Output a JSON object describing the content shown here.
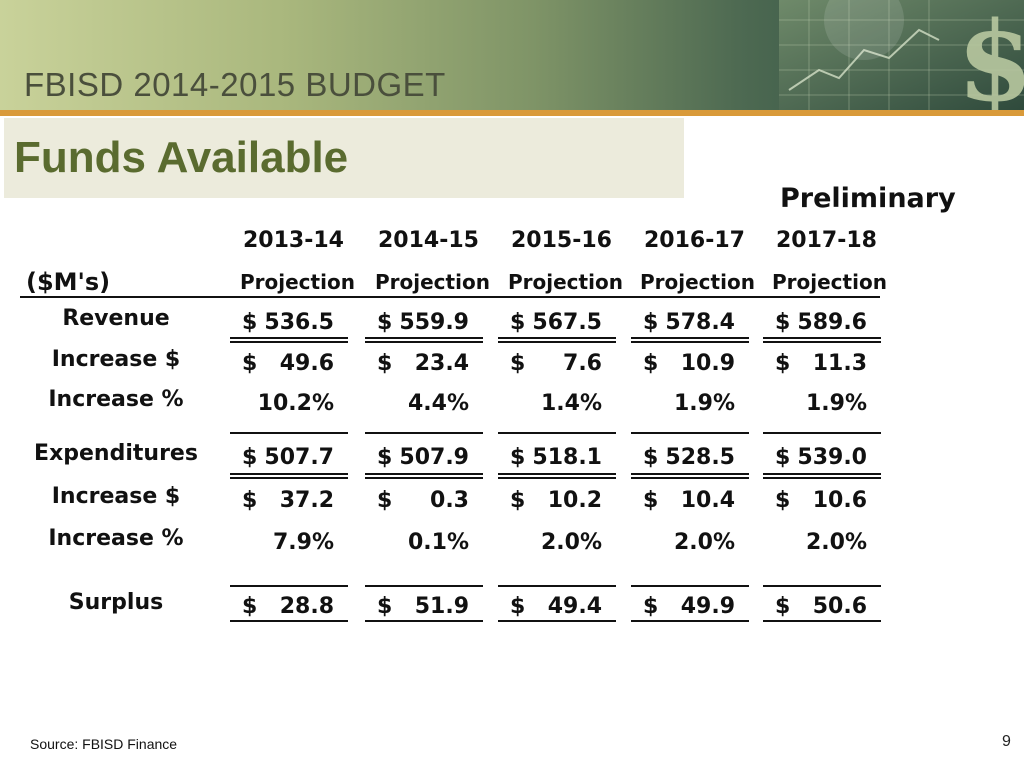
{
  "header": {
    "banner_title": "FBISD 2014-2015 BUDGET",
    "slide_title": "Funds Available",
    "preliminary_label": "Preliminary"
  },
  "table": {
    "unit_label": "($M's)",
    "columns": [
      {
        "year": "2013-14",
        "sub": "Projection"
      },
      {
        "year": "2014-15",
        "sub": "Projection"
      },
      {
        "year": "2015-16",
        "sub": "Projection"
      },
      {
        "year": "2016-17",
        "sub": "Projection"
      },
      {
        "year": "2017-18",
        "sub": "Projection"
      }
    ],
    "rows": [
      {
        "label": "Revenue",
        "values": [
          "$ 536.5",
          "$ 559.9",
          "$ 567.5",
          "$ 578.4",
          "$ 589.6"
        ]
      },
      {
        "label": "Increase $",
        "values": [
          "$ 49.6",
          "$ 23.4",
          "$ 7.6",
          "$ 10.9",
          "$ 11.3"
        ]
      },
      {
        "label": "Increase %",
        "values": [
          "10.2%",
          "4.4%",
          "1.4%",
          "1.9%",
          "1.9%"
        ]
      },
      {
        "label": "Expenditures",
        "values": [
          "$ 507.7",
          "$ 507.9",
          "$ 518.1",
          "$ 528.5",
          "$ 539.0"
        ]
      },
      {
        "label": "Increase $",
        "values": [
          "$ 37.2",
          "$ 0.3",
          "$ 10.2",
          "$ 10.4",
          "$ 10.6"
        ]
      },
      {
        "label": "Increase %",
        "values": [
          "7.9%",
          "0.1%",
          "2.0%",
          "2.0%",
          "2.0%"
        ]
      },
      {
        "label": "Surplus",
        "values": [
          "$ 28.8",
          "$ 51.9",
          "$ 49.4",
          "$ 49.9",
          "$ 50.6"
        ]
      }
    ]
  },
  "footer": {
    "source": "Source: FBISD Finance",
    "page_number": "9"
  },
  "colors": {
    "title_green": "#5a6b2f",
    "accent_orange": "#d99a3a",
    "title_box_bg": "#ecebdc"
  }
}
